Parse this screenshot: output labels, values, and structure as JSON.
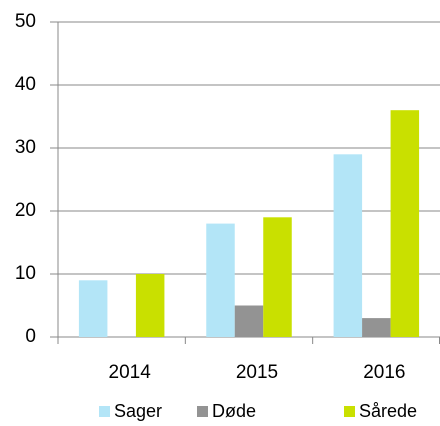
{
  "chart_data": {
    "type": "bar",
    "categories": [
      "2014",
      "2015",
      "2016"
    ],
    "series": [
      {
        "name": "Sager",
        "color": "#b3e5f7",
        "values": [
          9,
          18,
          29
        ]
      },
      {
        "name": "Døde",
        "color": "#939393",
        "values": [
          0,
          5,
          3
        ]
      },
      {
        "name": "Sårede",
        "color": "#c9e000",
        "values": [
          10,
          19,
          36
        ]
      }
    ],
    "ylim": [
      0,
      50
    ],
    "yticks": [
      0,
      10,
      20,
      30,
      40,
      50
    ],
    "grid": true,
    "legend": "bottom"
  }
}
